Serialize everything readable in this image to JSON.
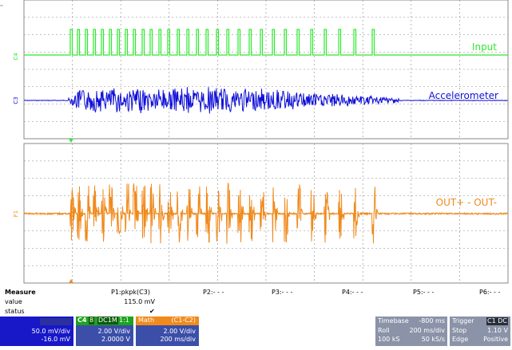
{
  "traces": [
    {
      "id": "c4",
      "marker": "C4",
      "label": "Input",
      "color": "#2ee82e"
    },
    {
      "id": "c3",
      "marker": "C3",
      "label": "Accelerometer",
      "color": "#1010d8"
    },
    {
      "id": "f1",
      "marker": "F1",
      "label": "OUT+ - OUT-",
      "color": "#f08a1c"
    }
  ],
  "measure": {
    "title": "Measure",
    "row_value": "value",
    "row_status": "status",
    "p1_label": "P1:pkpk(C3)",
    "p1_value": "115.0 mV",
    "p1_status": "✔",
    "p2": "P2:- - -",
    "p3": "P3:- - -",
    "p4": "P4:- - -",
    "p5": "P5:- - -",
    "p6": "P6:- - -"
  },
  "c3_box": {
    "line1": "50.0 mV/div",
    "line2": "-16.0 mV"
  },
  "c4_box": {
    "tag": "C4",
    "sub1": "8",
    "sub2": "DC1M",
    "sub3": "1:1",
    "line1": "2.00 V/div",
    "line2": "2.0000 V"
  },
  "math_box": {
    "tag": "Math",
    "func": "(C1-C2)",
    "line1": "2.00 V/div",
    "line2": "200 ms/div"
  },
  "timebase": {
    "title": "Timebase",
    "value": "-800 ms",
    "row2a": "Roll",
    "row2b": "200 ms/div",
    "row3a": "100 kS",
    "row3b": "50 kS/s"
  },
  "trigger": {
    "title": "Trigger",
    "tags": "C1 DC",
    "row2a": "Stop",
    "row2b": "1.10 V",
    "row3a": "Edge",
    "row3b": "Positive"
  },
  "colors": {
    "grid": "#888888",
    "panel_blue": "#1818c8",
    "panel_grey": "#8b93a8",
    "panel_dark": "#5b6270"
  }
}
